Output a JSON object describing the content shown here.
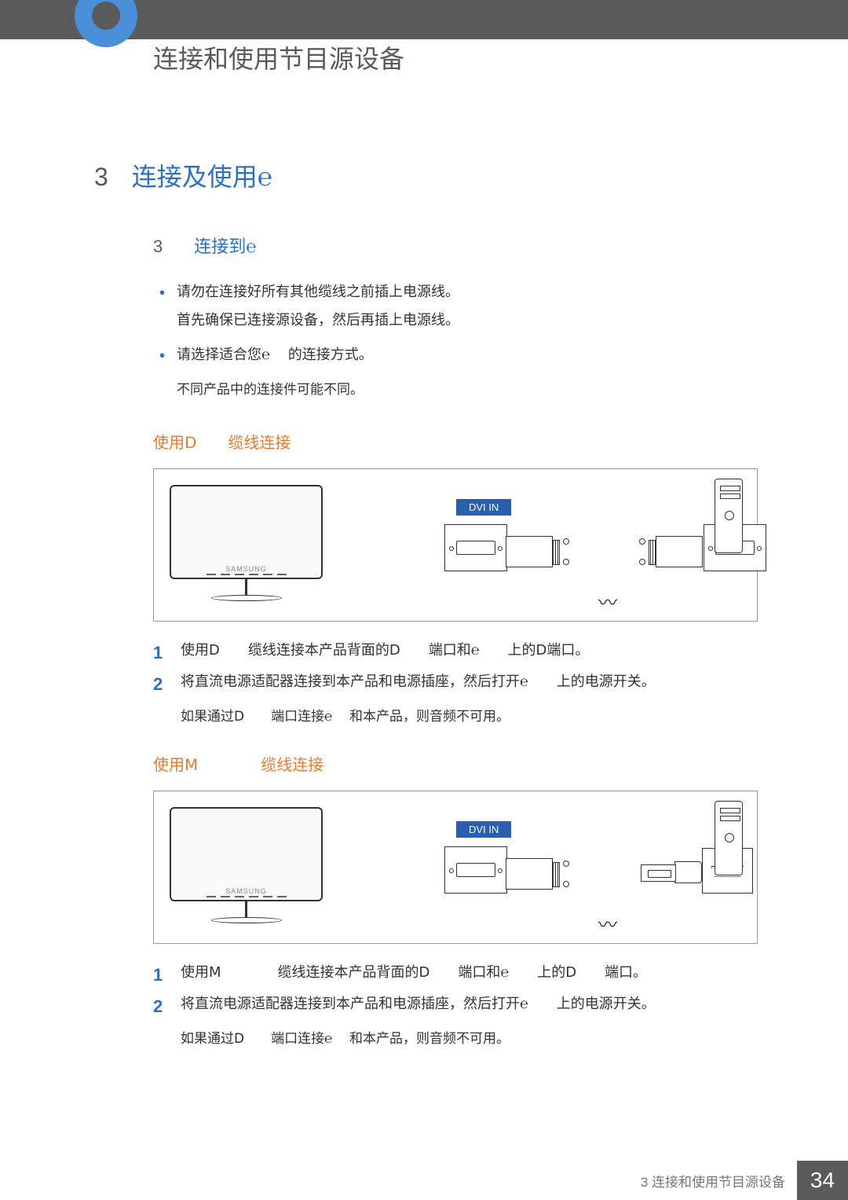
{
  "header": {
    "chapter_title": "连接和使用节目源设备"
  },
  "section": {
    "number": "3",
    "title": "连接及使用℮"
  },
  "subsection": {
    "number": "3",
    "title": "连接到℮",
    "bullets": [
      "请勿在连接好所有其他缆线之前插上电源线。\n首先确保已连接源设备，然后再插上电源线。",
      "请选择适合您℮　 的连接方式。"
    ],
    "note": "不同产品中的连接件可能不同。"
  },
  "connection1": {
    "title_part1": "使用Ⅾ",
    "title_part2": "缆线连接",
    "dvi_label": "DVI IN",
    "steps": [
      "使用Ⅾ　　缆线连接本产品背面的Ⅾ　　端口和℮　　上的Ⅾ端口。",
      "将直流电源适配器连接到本产品和电源插座，然后打开℮　　上的电源开关。"
    ],
    "note": "如果通过Ⅾ　　端口连接℮　 和本产品，则音频不可用。"
  },
  "connection2": {
    "title_part1": "使用Ⅿ",
    "title_part2": "缆线连接",
    "dvi_label": "DVI IN",
    "steps": [
      "使用Ⅿ　　　　缆线连接本产品背面的Ⅾ　　端口和℮　　上的Ⅾ　　端口。",
      "将直流电源适配器连接到本产品和电源插座，然后打开℮　　上的电源开关。"
    ],
    "note": "如果通过Ⅾ　　端口连接℮　 和本产品，则音频不可用。"
  },
  "footer": {
    "text": "3 连接和使用节目源设备",
    "page": "34"
  },
  "colors": {
    "header_bar": "#5a5a5a",
    "accent_blue": "#2a6fc9",
    "circle_blue": "#4a90d9",
    "orange": "#e67a2e",
    "dvi_bg": "#2a5fb0",
    "text": "#333333",
    "footer_text": "#777777"
  }
}
